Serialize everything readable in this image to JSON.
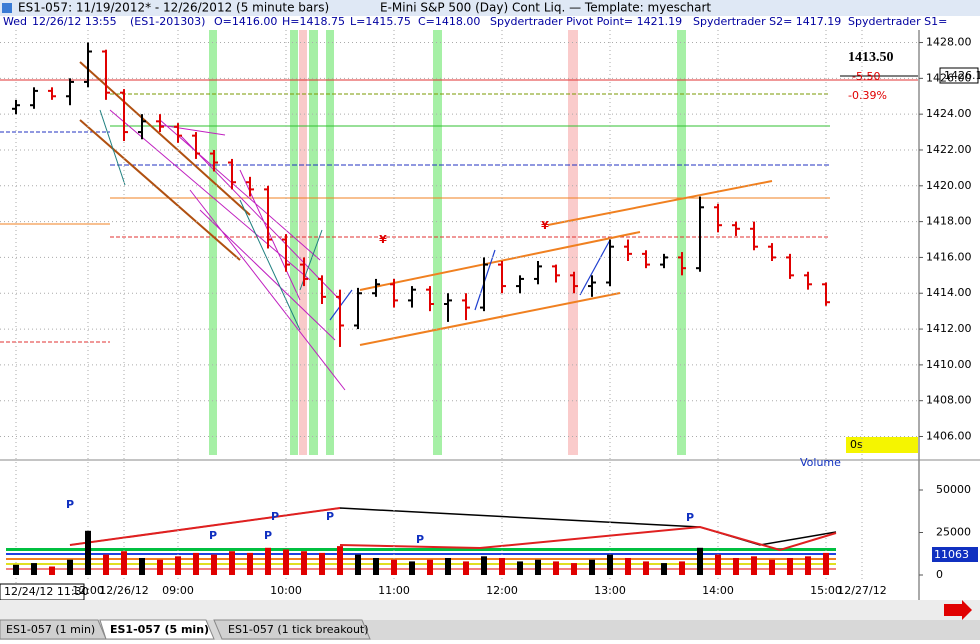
{
  "window": {
    "title": "ES1-057:  11/19/2012* - 12/26/2012  (5 minute bars)",
    "subtitle": "E-Mini S&P 500 (Day) Cont Liq.  —  Template: myeschart",
    "info": [
      "Wed",
      "12/26/12 13:55",
      "(ES1-201303)",
      "O=1416.00",
      "H=1418.75",
      "L=1415.75",
      "C=1418.00",
      "Spydertrader Pivot Point= 1421.19",
      "Spydertrader S2= 1417.19",
      "Spydertrader S1="
    ],
    "last_price": "1413.50",
    "net_change": "-5.50",
    "pct_change": "-0.39%",
    "price_box": "1426.1",
    "timer": "0s",
    "volume_label": "Volume",
    "volume_box": "11063",
    "cursor_time": "12/24/12 11:30",
    "tabs": [
      "ES1-057 (1 min)",
      "ES1-057 (5 min)",
      "ES1-057 (1 tick breakout)"
    ],
    "annotations": [
      "P",
      "P",
      "P",
      "P",
      "P",
      "P",
      "P"
    ],
    "markers": [
      "¥",
      "¥"
    ]
  },
  "chart_data": {
    "type": "ohlc",
    "categories": [
      null,
      null,
      null,
      null,
      "12:00",
      null,
      "12/26/12",
      null,
      null,
      "09:00",
      null,
      null,
      null,
      null,
      null,
      "10:00",
      null,
      null,
      null,
      null,
      null,
      "11:00",
      null,
      null,
      null,
      null,
      null,
      "12:00",
      null,
      null,
      null,
      null,
      null,
      "13:00",
      null,
      null,
      null,
      null,
      null,
      "14:00",
      null,
      null,
      null,
      null,
      null,
      "15:00",
      null,
      "12/27/12"
    ],
    "open": [
      1424.3,
      1424.5,
      1425.3,
      1425,
      1425.8,
      1427.5,
      1425.2,
      1423,
      1423.6,
      1423.3,
      1422.8,
      1421.8,
      1421.3,
      1420.2,
      1419.8,
      1417,
      1415.6,
      1414.8,
      1413.8,
      1412.2,
      1414,
      1414.5,
      1413.6,
      1414.2,
      1413.4,
      1413.6,
      1413.2,
      1415.6,
      1414.4,
      1414.8,
      1415.5,
      1415,
      1414.4,
      1414.6,
      1416.6,
      1416.2,
      1415.6,
      1416,
      1415.4,
      1418.8,
      1417.8,
      1417.6,
      1416.6,
      1416,
      1415,
      1414.5,
      null,
      null
    ],
    "high": [
      1424.8,
      1425.5,
      1425.5,
      1426,
      1428,
      1427.6,
      1425.4,
      1424,
      1424,
      1423.5,
      1423,
      1422,
      1421.5,
      1420.5,
      1420,
      1417.3,
      1416,
      1415,
      1414.2,
      1414.3,
      1414.8,
      1414.8,
      1414.4,
      1414.4,
      1414,
      1414,
      1416,
      1415.8,
      1415,
      1415.8,
      1415.6,
      1415.2,
      1415,
      1417,
      1417,
      1416.4,
      1416.2,
      1416.3,
      1419.4,
      1419,
      1418,
      1418,
      1416.8,
      1416.2,
      1415.2,
      1414.6,
      null,
      null
    ],
    "low": [
      1424,
      1424.3,
      1424.8,
      1424.5,
      1425.5,
      1424.8,
      1422.5,
      1422.6,
      1423,
      1422.4,
      1421.5,
      1420.8,
      1419.8,
      1419.4,
      1416.5,
      1415.2,
      1414.4,
      1413.4,
      1411,
      1412,
      1413.8,
      1413.2,
      1413.2,
      1413,
      1412.4,
      1412.5,
      1413,
      1414,
      1414,
      1414.5,
      1414.6,
      1414,
      1413.8,
      1414.4,
      1415.8,
      1415.4,
      1415.4,
      1415,
      1415.2,
      1417.4,
      1417.2,
      1416.4,
      1415.8,
      1414.8,
      1414.2,
      1413.3,
      null,
      null
    ],
    "close": [
      1424.5,
      1425.3,
      1425,
      1425.8,
      1427.5,
      1425.2,
      1423,
      1423.6,
      1423.3,
      1422.8,
      1421.8,
      1421.3,
      1420.2,
      1419.8,
      1417,
      1415.6,
      1414.8,
      1413.8,
      1412.2,
      1414,
      1414.5,
      1413.6,
      1414.2,
      1413.4,
      1413.6,
      1413.2,
      1415.6,
      1414.4,
      1414.8,
      1415.5,
      1415,
      1414.4,
      1414.6,
      1416.6,
      1416.2,
      1415.6,
      1416,
      1415.4,
      1418.8,
      1417.8,
      1417.6,
      1416.6,
      1416,
      1415,
      1414.5,
      1413.5,
      null,
      null
    ],
    "volume": [
      6000,
      7000,
      5000,
      9000,
      26000,
      12000,
      14000,
      10000,
      9000,
      11000,
      13000,
      12000,
      14000,
      13000,
      16000,
      15000,
      14000,
      13000,
      17000,
      12000,
      10000,
      9000,
      8000,
      9000,
      10000,
      8000,
      11000,
      10000,
      8000,
      9000,
      8000,
      7000,
      9000,
      12000,
      10000,
      8000,
      7000,
      8000,
      16000,
      12000,
      10000,
      11000,
      9000,
      10000,
      11000,
      13000,
      null,
      null
    ],
    "up_color": "#000000",
    "down_color": "#e00000",
    "ylim": [
      1404.8,
      1428.7
    ],
    "yticks": [
      {
        "value": 1406,
        "label": "1406.00"
      },
      {
        "value": 1408,
        "label": "1408.00"
      },
      {
        "value": 1410,
        "label": "1410.00"
      },
      {
        "value": 1412,
        "label": "1412.00"
      },
      {
        "value": 1414,
        "label": "1414.00"
      },
      {
        "value": 1416,
        "label": "1416.00"
      },
      {
        "value": 1418,
        "label": "1418.00"
      },
      {
        "value": 1420,
        "label": "1420.00"
      },
      {
        "value": 1422,
        "label": "1422.00"
      },
      {
        "value": 1424,
        "label": "1424.00"
      },
      {
        "value": 1426,
        "label": "1426.00"
      },
      {
        "value": 1428,
        "label": "1428.00"
      }
    ],
    "y2lim": [
      0,
      66000
    ],
    "y2ticks": [
      0,
      25000,
      50000
    ],
    "grid": true
  }
}
